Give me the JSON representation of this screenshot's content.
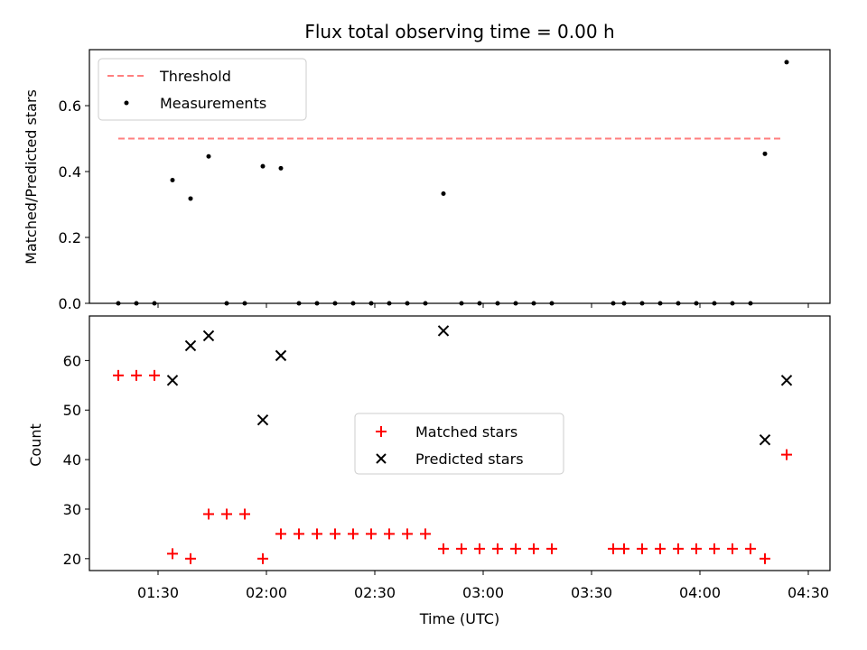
{
  "chart_data": [
    {
      "type": "scatter",
      "title": "Flux total observing time = 0.00 h",
      "xlabel": "",
      "ylabel": "Matched/Predicted stars",
      "xlim": [
        "01:11",
        "04:36"
      ],
      "ylim": [
        0,
        0.77
      ],
      "yticks": [
        0.0,
        0.2,
        0.4,
        0.6
      ],
      "ytick_labels": [
        "0.0",
        "0.2",
        "0.4",
        "0.6"
      ],
      "legend_position": "top-left",
      "threshold": {
        "name": "Threshold",
        "value": 0.5,
        "x_range": [
          "01:19",
          "04:23"
        ],
        "color": "#ff7f7f",
        "style": "dashed"
      },
      "series": [
        {
          "name": "Measurements",
          "color": "#000000",
          "marker": "dot",
          "points": [
            [
              "01:19",
              0
            ],
            [
              "01:24",
              0
            ],
            [
              "01:29",
              0
            ],
            [
              "01:34",
              0.374
            ],
            [
              "01:39",
              0.318
            ],
            [
              "01:44",
              0.446
            ],
            [
              "01:49",
              0
            ],
            [
              "01:54",
              0
            ],
            [
              "01:59",
              0.416
            ],
            [
              "02:04",
              0.41
            ],
            [
              "02:09",
              0
            ],
            [
              "02:14",
              0
            ],
            [
              "02:19",
              0
            ],
            [
              "02:24",
              0
            ],
            [
              "02:29",
              0
            ],
            [
              "02:34",
              0
            ],
            [
              "02:39",
              0
            ],
            [
              "02:44",
              0
            ],
            [
              "02:49",
              0.333
            ],
            [
              "02:54",
              0
            ],
            [
              "02:59",
              0
            ],
            [
              "03:04",
              0
            ],
            [
              "03:09",
              0
            ],
            [
              "03:14",
              0
            ],
            [
              "03:19",
              0
            ],
            [
              "03:36",
              0
            ],
            [
              "03:39",
              0
            ],
            [
              "03:44",
              0
            ],
            [
              "03:49",
              0
            ],
            [
              "03:54",
              0
            ],
            [
              "03:59",
              0
            ],
            [
              "04:04",
              0
            ],
            [
              "04:09",
              0
            ],
            [
              "04:14",
              0
            ],
            [
              "04:18",
              0.454
            ],
            [
              "04:24",
              0.732
            ]
          ]
        }
      ]
    },
    {
      "type": "scatter",
      "title": "",
      "xlabel": "Time (UTC)",
      "ylabel": "Count",
      "xlim": [
        "01:11",
        "04:36"
      ],
      "ylim": [
        17.6,
        69
      ],
      "yticks": [
        20,
        30,
        40,
        50,
        60
      ],
      "ytick_labels": [
        "20",
        "30",
        "40",
        "50",
        "60"
      ],
      "xticks": [
        "01:30",
        "02:00",
        "02:30",
        "03:00",
        "03:30",
        "04:00",
        "04:30"
      ],
      "xtick_labels": [
        "01:30",
        "02:00",
        "02:30",
        "03:00",
        "03:30",
        "04:00",
        "04:30"
      ],
      "legend_position": "center",
      "series": [
        {
          "name": "Matched stars",
          "color": "#ff0000",
          "marker": "plus",
          "points": [
            [
              "01:19",
              57
            ],
            [
              "01:24",
              57
            ],
            [
              "01:29",
              57
            ],
            [
              "01:34",
              21
            ],
            [
              "01:39",
              20
            ],
            [
              "01:44",
              29
            ],
            [
              "01:49",
              29
            ],
            [
              "01:54",
              29
            ],
            [
              "01:59",
              20
            ],
            [
              "02:04",
              25
            ],
            [
              "02:09",
              25
            ],
            [
              "02:14",
              25
            ],
            [
              "02:19",
              25
            ],
            [
              "02:24",
              25
            ],
            [
              "02:29",
              25
            ],
            [
              "02:34",
              25
            ],
            [
              "02:39",
              25
            ],
            [
              "02:44",
              25
            ],
            [
              "02:49",
              22
            ],
            [
              "02:54",
              22
            ],
            [
              "02:59",
              22
            ],
            [
              "03:04",
              22
            ],
            [
              "03:09",
              22
            ],
            [
              "03:14",
              22
            ],
            [
              "03:19",
              22
            ],
            [
              "03:36",
              22
            ],
            [
              "03:39",
              22
            ],
            [
              "03:44",
              22
            ],
            [
              "03:49",
              22
            ],
            [
              "03:54",
              22
            ],
            [
              "03:59",
              22
            ],
            [
              "04:04",
              22
            ],
            [
              "04:09",
              22
            ],
            [
              "04:14",
              22
            ],
            [
              "04:18",
              20
            ],
            [
              "04:24",
              41
            ]
          ]
        },
        {
          "name": "Predicted stars",
          "color": "#000000",
          "marker": "x",
          "points": [
            [
              "01:34",
              56
            ],
            [
              "01:39",
              63
            ],
            [
              "01:44",
              65
            ],
            [
              "01:59",
              48
            ],
            [
              "02:04",
              61
            ],
            [
              "02:49",
              66
            ],
            [
              "04:18",
              44
            ],
            [
              "04:24",
              56
            ]
          ]
        }
      ]
    }
  ]
}
